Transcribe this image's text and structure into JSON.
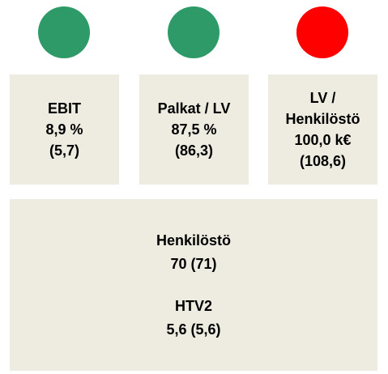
{
  "indicators": [
    {
      "color": "#2e9a68",
      "lines": [
        "EBIT",
        "8,9 %",
        "(5,7)"
      ]
    },
    {
      "color": "#2e9a68",
      "lines": [
        "Palkat / LV",
        "87,5 %",
        "(86,3)"
      ]
    },
    {
      "color": "#ff0000",
      "lines": [
        "LV /",
        "Henkilöstö",
        "100,0 k€",
        "(108,6)"
      ]
    }
  ],
  "summary": {
    "groups": [
      {
        "title": "Henkilöstö",
        "value": "70 (71)"
      },
      {
        "title": "HTV2",
        "value": "5,6 (5,6)"
      }
    ]
  }
}
